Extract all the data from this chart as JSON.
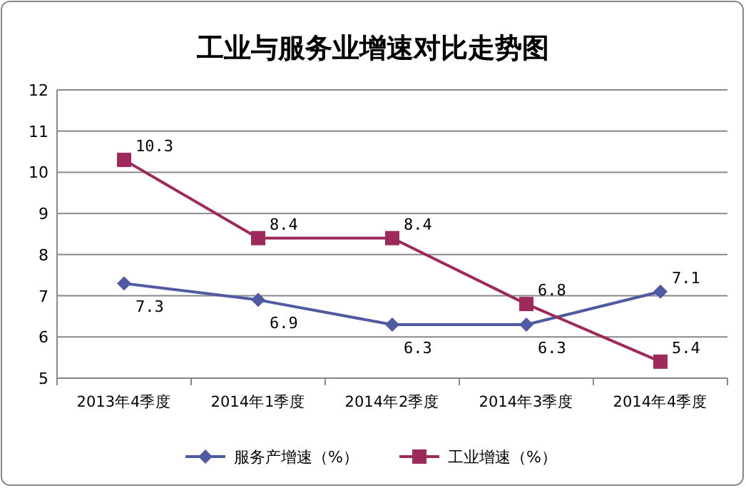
{
  "chart_data": {
    "type": "line",
    "title": "工业与服务业增速对比走势图",
    "categories": [
      "2013年4季度",
      "2014年1季度",
      "2014年2季度",
      "2014年3季度",
      "2014年4季度"
    ],
    "series": [
      {
        "name": "服务产增速（%）",
        "color": "#4f5aa0",
        "marker": "diamond",
        "values": [
          7.3,
          6.9,
          6.3,
          6.3,
          7.1
        ]
      },
      {
        "name": "工业增速（%）",
        "color": "#9c2a5a",
        "marker": "square",
        "values": [
          10.3,
          8.4,
          8.4,
          6.8,
          5.4
        ]
      }
    ],
    "ylim": [
      5,
      12
    ],
    "yticks": [
      5,
      6,
      7,
      8,
      9,
      10,
      11,
      12
    ],
    "grid": "y",
    "legend": "bottom",
    "data_labels": true
  }
}
